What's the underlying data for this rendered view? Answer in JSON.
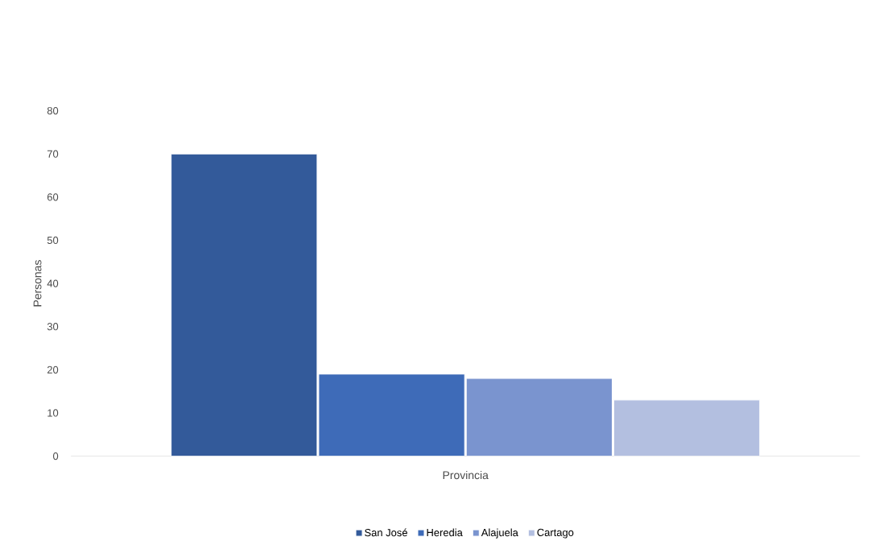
{
  "chart_data": {
    "type": "bar",
    "xlabel": "Provincia",
    "ylabel": "Personas",
    "categories": [
      null
    ],
    "series": [
      {
        "name": "San José",
        "color": "#335a9a",
        "values": [
          70
        ]
      },
      {
        "name": "Heredia",
        "color": "#3e6bb8",
        "values": [
          19
        ]
      },
      {
        "name": "Alajuela",
        "color": "#7a94cf",
        "values": [
          18
        ]
      },
      {
        "name": "Cartago",
        "color": "#b3bfe0",
        "values": [
          13
        ]
      }
    ],
    "ylim": [
      0,
      80
    ],
    "yticks": [
      0,
      10,
      20,
      30,
      40,
      50,
      60,
      70,
      80
    ],
    "grid": false,
    "legend": "bottom"
  }
}
